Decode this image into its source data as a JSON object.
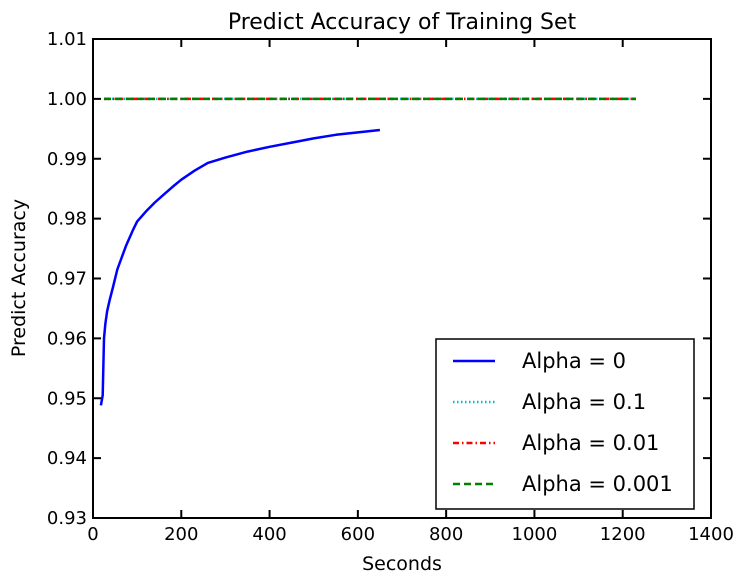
{
  "chart_data": {
    "type": "line",
    "title": "Predict Accuracy of Training Set",
    "xlabel": "Seconds",
    "ylabel": "Predict Accuracy",
    "xlim": [
      0,
      1400
    ],
    "ylim": [
      0.93,
      1.01
    ],
    "xticks": [
      "0",
      "200",
      "400",
      "600",
      "800",
      "1000",
      "1200",
      "1400"
    ],
    "yticks": [
      "0.93",
      "0.94",
      "0.95",
      "0.96",
      "0.97",
      "0.98",
      "0.99",
      "1.00",
      "1.01"
    ],
    "grid": false,
    "legend_position": "lower-right",
    "series": [
      {
        "name": "Alpha = 0",
        "color": "#0000ff",
        "style": "solid",
        "x": [
          18,
          22,
          25,
          28,
          32,
          38,
          45,
          55,
          65,
          75,
          90,
          100,
          120,
          140,
          160,
          180,
          200,
          230,
          260,
          300,
          350,
          400,
          450,
          500,
          550,
          600,
          650
        ],
        "y": [
          0.9488,
          0.9505,
          0.96,
          0.9625,
          0.9645,
          0.9665,
          0.9685,
          0.9715,
          0.9735,
          0.9755,
          0.978,
          0.9795,
          0.9812,
          0.9827,
          0.984,
          0.9853,
          0.9865,
          0.988,
          0.9893,
          0.9902,
          0.9912,
          0.992,
          0.9927,
          0.9934,
          0.994,
          0.9944,
          0.9948
        ]
      },
      {
        "name": "Alpha = 0.1",
        "color": "#00bfbf",
        "style": "dotted",
        "x": [
          25,
          200,
          400,
          600,
          800,
          1000,
          1230
        ],
        "y": [
          1.0,
          1.0,
          1.0,
          1.0,
          1.0,
          1.0,
          1.0
        ]
      },
      {
        "name": "Alpha = 0.01",
        "color": "#ff0000",
        "style": "dashdot",
        "x": [
          25,
          200,
          400,
          600,
          800,
          1000,
          1230
        ],
        "y": [
          1.0,
          1.0,
          1.0,
          1.0,
          1.0,
          1.0,
          1.0
        ]
      },
      {
        "name": "Alpha = 0.001",
        "color": "#008000",
        "style": "dashed",
        "x": [
          25,
          200,
          400,
          600,
          800,
          1000,
          1230
        ],
        "y": [
          1.0,
          1.0,
          1.0,
          1.0,
          1.0,
          1.0,
          1.0
        ]
      }
    ]
  }
}
